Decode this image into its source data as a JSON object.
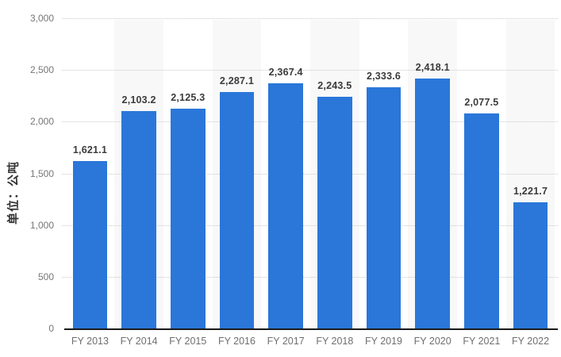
{
  "chart_data": {
    "type": "bar",
    "title": "",
    "xlabel": "",
    "ylabel": "单位：公吨",
    "categories": [
      "FY 2013",
      "FY 2014",
      "FY 2015",
      "FY 2016",
      "FY 2017",
      "FY 2018",
      "FY 2019",
      "FY 2020",
      "FY 2021",
      "FY 2022"
    ],
    "values": [
      1621.1,
      2103.2,
      2125.3,
      2287.1,
      2367.4,
      2243.5,
      2333.6,
      2418.1,
      2077.5,
      1221.7
    ],
    "value_labels": [
      "1,621.1",
      "2,103.2",
      "2,125.3",
      "2,287.1",
      "2,367.4",
      "2,243.5",
      "2,333.6",
      "2,418.1",
      "2,077.5",
      "1,221.7"
    ],
    "ylim": [
      0,
      3000
    ],
    "ytick_values": [
      0,
      500,
      1000,
      1500,
      2000,
      2500,
      3000
    ],
    "ytick_labels": [
      "0",
      "500",
      "1,000",
      "1,500",
      "2,000",
      "2,500",
      "3,000"
    ],
    "grid": "horizontal-dotted",
    "legend": "none",
    "band_columns": "alternating-even",
    "colors": {
      "bar": "#2a77d9",
      "column_band": "#f8f8f8",
      "grid_line": "#c9c9c9",
      "axis_line": "#1a1a1a",
      "tick_label": "#767676",
      "x_label": "#6f6f6f",
      "value_label": "#3b3b3b",
      "y_axis_title": "#333333",
      "background": "#ffffff"
    }
  }
}
